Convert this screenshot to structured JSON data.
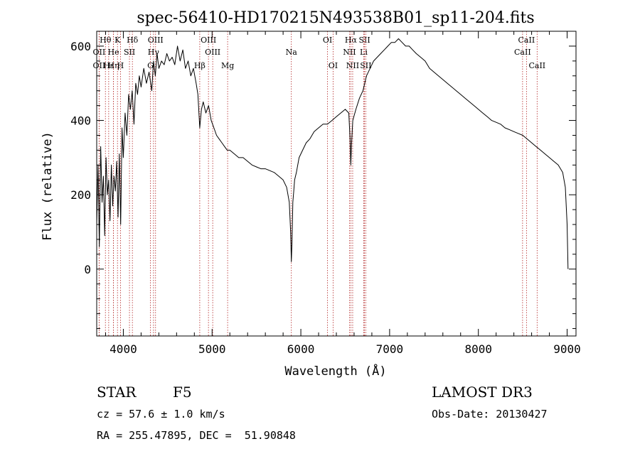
{
  "chart_data": {
    "type": "line",
    "title": "spec-56410-HD170215N493538B01_sp11-204.fits",
    "xlabel": "Wavelength (Å)",
    "ylabel": "Flux (relative)",
    "xlim": [
      3700,
      9100
    ],
    "ylim": [
      -180,
      640
    ],
    "xticks": [
      4000,
      5000,
      6000,
      7000,
      8000,
      9000
    ],
    "yticks": [
      0,
      200,
      400,
      600
    ],
    "series": [
      {
        "x": [
          3700,
          3715,
          3730,
          3745,
          3760,
          3775,
          3790,
          3805,
          3820,
          3835,
          3850,
          3865,
          3880,
          3895,
          3910,
          3925,
          3940,
          3955,
          3970,
          3985,
          4000,
          4020,
          4040,
          4060,
          4080,
          4100,
          4120,
          4140,
          4160,
          4180,
          4200,
          4230,
          4260,
          4290,
          4320,
          4340,
          4360,
          4380,
          4400,
          4430,
          4460,
          4490,
          4520,
          4550,
          4580,
          4610,
          4640,
          4670,
          4700,
          4730,
          4760,
          4790,
          4820,
          4840,
          4861,
          4880,
          4900,
          4930,
          4960,
          4990,
          5020,
          5050,
          5080,
          5110,
          5140,
          5170,
          5200,
          5250,
          5300,
          5350,
          5400,
          5450,
          5500,
          5550,
          5600,
          5650,
          5700,
          5750,
          5800,
          5840,
          5870,
          5885,
          5893,
          5900,
          5910,
          5920,
          5930,
          5950,
          5980,
          6020,
          6060,
          6100,
          6150,
          6200,
          6250,
          6300,
          6350,
          6400,
          6450,
          6500,
          6540,
          6555,
          6563,
          6570,
          6585,
          6620,
          6660,
          6700,
          6740,
          6780,
          6820,
          6860,
          6900,
          6940,
          6980,
          7020,
          7060,
          7100,
          7140,
          7180,
          7220,
          7260,
          7300,
          7350,
          7400,
          7450,
          7500,
          7550,
          7600,
          7650,
          7700,
          7750,
          7800,
          7850,
          7900,
          7950,
          8000,
          8050,
          8100,
          8150,
          8200,
          8250,
          8300,
          8350,
          8400,
          8450,
          8500,
          8550,
          8600,
          8650,
          8700,
          8750,
          8800,
          8850,
          8900,
          8950,
          8980,
          9000,
          9010
        ],
        "y": [
          120,
          280,
          60,
          330,
          180,
          250,
          90,
          300,
          200,
          240,
          130,
          280,
          170,
          250,
          210,
          290,
          140,
          310,
          120,
          380,
          300,
          420,
          360,
          470,
          430,
          480,
          390,
          500,
          470,
          520,
          490,
          540,
          500,
          530,
          480,
          560,
          520,
          580,
          540,
          560,
          550,
          580,
          560,
          570,
          550,
          600,
          560,
          590,
          540,
          560,
          520,
          540,
          500,
          470,
          380,
          430,
          450,
          420,
          440,
          400,
          380,
          360,
          350,
          340,
          330,
          320,
          320,
          310,
          300,
          300,
          290,
          280,
          275,
          270,
          270,
          265,
          260,
          250,
          240,
          220,
          180,
          100,
          20,
          70,
          180,
          210,
          240,
          260,
          300,
          320,
          340,
          350,
          370,
          380,
          390,
          390,
          400,
          410,
          420,
          430,
          420,
          350,
          280,
          330,
          400,
          430,
          460,
          480,
          520,
          540,
          560,
          570,
          580,
          590,
          600,
          610,
          610,
          620,
          610,
          600,
          600,
          590,
          580,
          570,
          560,
          540,
          530,
          520,
          510,
          500,
          490,
          480,
          470,
          460,
          450,
          440,
          430,
          420,
          410,
          400,
          395,
          390,
          380,
          375,
          370,
          365,
          360,
          350,
          340,
          330,
          320,
          310,
          300,
          290,
          280,
          260,
          220,
          120,
          0
        ]
      }
    ],
    "line_markers": [
      {
        "label": "Hθ",
        "x": 3798,
        "row": 0
      },
      {
        "label": "OII",
        "x": 3727,
        "row": 1
      },
      {
        "label": "OII",
        "x": 3727,
        "row": 2
      },
      {
        "label": "Hε",
        "x": 3835,
        "row": 2
      },
      {
        "label": "Hη",
        "x": 3889,
        "row": 2
      },
      {
        "label": "He",
        "x": 3889,
        "row": 1
      },
      {
        "label": "K",
        "x": 3934,
        "row": 0
      },
      {
        "label": "SII",
        "x": 4069,
        "row": 1
      },
      {
        "label": "H",
        "x": 3968,
        "row": 2
      },
      {
        "label": "Hδ",
        "x": 4102,
        "row": 0
      },
      {
        "label": "OIII",
        "x": 4363,
        "row": 0
      },
      {
        "label": "Hγ",
        "x": 4340,
        "row": 1
      },
      {
        "label": "G",
        "x": 4305,
        "row": 2
      },
      {
        "label": "Hβ",
        "x": 4861,
        "row": 2
      },
      {
        "label": "OIII",
        "x": 4959,
        "row": 0
      },
      {
        "label": "OIII",
        "x": 5007,
        "row": 1
      },
      {
        "label": "Mg",
        "x": 5175,
        "row": 2
      },
      {
        "label": "Na",
        "x": 5893,
        "row": 1
      },
      {
        "label": "OI",
        "x": 6300,
        "row": 0
      },
      {
        "label": "OI",
        "x": 6363,
        "row": 2
      },
      {
        "label": "Hα",
        "x": 6563,
        "row": 0
      },
      {
        "label": "NII",
        "x": 6548,
        "row": 1
      },
      {
        "label": "NII",
        "x": 6584,
        "row": 2
      },
      {
        "label": "SII",
        "x": 6717,
        "row": 0
      },
      {
        "label": "Li",
        "x": 6708,
        "row": 1
      },
      {
        "label": "SII",
        "x": 6731,
        "row": 2
      },
      {
        "label": "CaII",
        "x": 8542,
        "row": 0
      },
      {
        "label": "CaII",
        "x": 8498,
        "row": 1
      },
      {
        "label": "CaII",
        "x": 8662,
        "row": 2
      }
    ],
    "marker_color": "#b22222",
    "line_color": "#000000"
  },
  "info": {
    "object_class": "STAR",
    "subclass": "F5",
    "survey": "LAMOST DR3",
    "cz": "cz = 57.6 ± 1.0 km/s",
    "obs_date": "Obs-Date: 20130427",
    "coords": "RA = 255.47895, DEC =  51.90848"
  }
}
